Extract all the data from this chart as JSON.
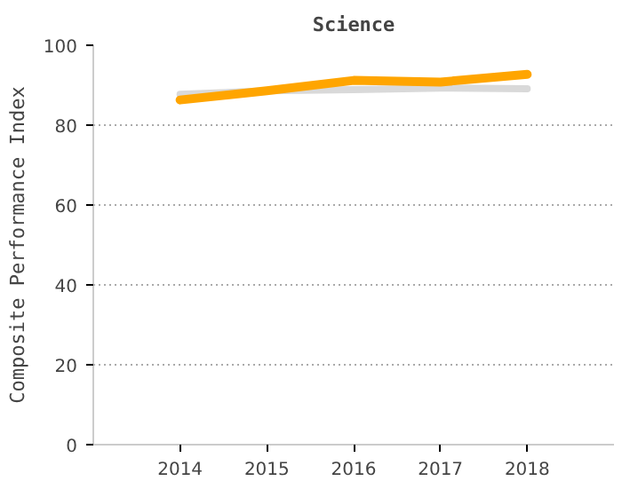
{
  "chart_data": {
    "type": "line",
    "title": "Science",
    "ylabel": "Composite Performance Index",
    "categories": [
      "2014",
      "2015",
      "2016",
      "2017",
      "2018"
    ],
    "series": [
      {
        "color": "#d9d9d9",
        "values": [
          87.7,
          88.6,
          88.9,
          89.3,
          89.1
        ]
      },
      {
        "color": "#ffa500",
        "values": [
          86.3,
          88.6,
          91.2,
          90.8,
          92.7
        ]
      }
    ],
    "ylim": [
      0,
      100
    ],
    "yticks": [
      0,
      20,
      40,
      60,
      80,
      100
    ],
    "grid": "y",
    "line_style": "solid",
    "marker": "none"
  }
}
